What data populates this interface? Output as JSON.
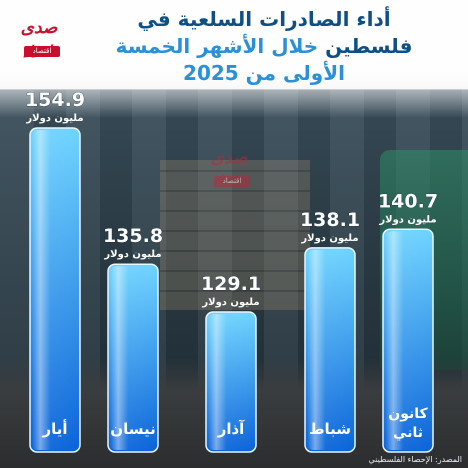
{
  "title": {
    "line1": "أداء الصادرات السلعية في",
    "line2_a": "فلسطين",
    "line2_b": "خلال الأشهر الخمسة",
    "line3": "الأولى من 2025"
  },
  "logo": {
    "main": "صدى نيوز",
    "sub": "اقتصاد"
  },
  "source": "المصدر: الإحصاء الفلسطيني",
  "colors": {
    "title_dark": "#0e4f86",
    "title_light": "#2a90d8",
    "bar_top": "#6fd4ff",
    "bar_bottom": "#0a63d9",
    "label": "#ffffff",
    "brand_red": "#c8102e"
  },
  "chart_data": {
    "type": "bar",
    "categories": [
      "أيار",
      "نيسان",
      "آذار",
      "شباط",
      "كانون ثاني"
    ],
    "values": [
      154.9,
      135.8,
      129.1,
      138.1,
      140.7
    ],
    "value_labels": [
      "154.9",
      "135.8",
      "129.1",
      "138.1",
      "140.7"
    ],
    "unit": "مليون دولار",
    "title": "أداء الصادرات السلعية في فلسطين خلال الأشهر الخمسة الأولى من 2025",
    "xlabel": "",
    "ylabel": "",
    "grid": false,
    "legend": "none"
  }
}
